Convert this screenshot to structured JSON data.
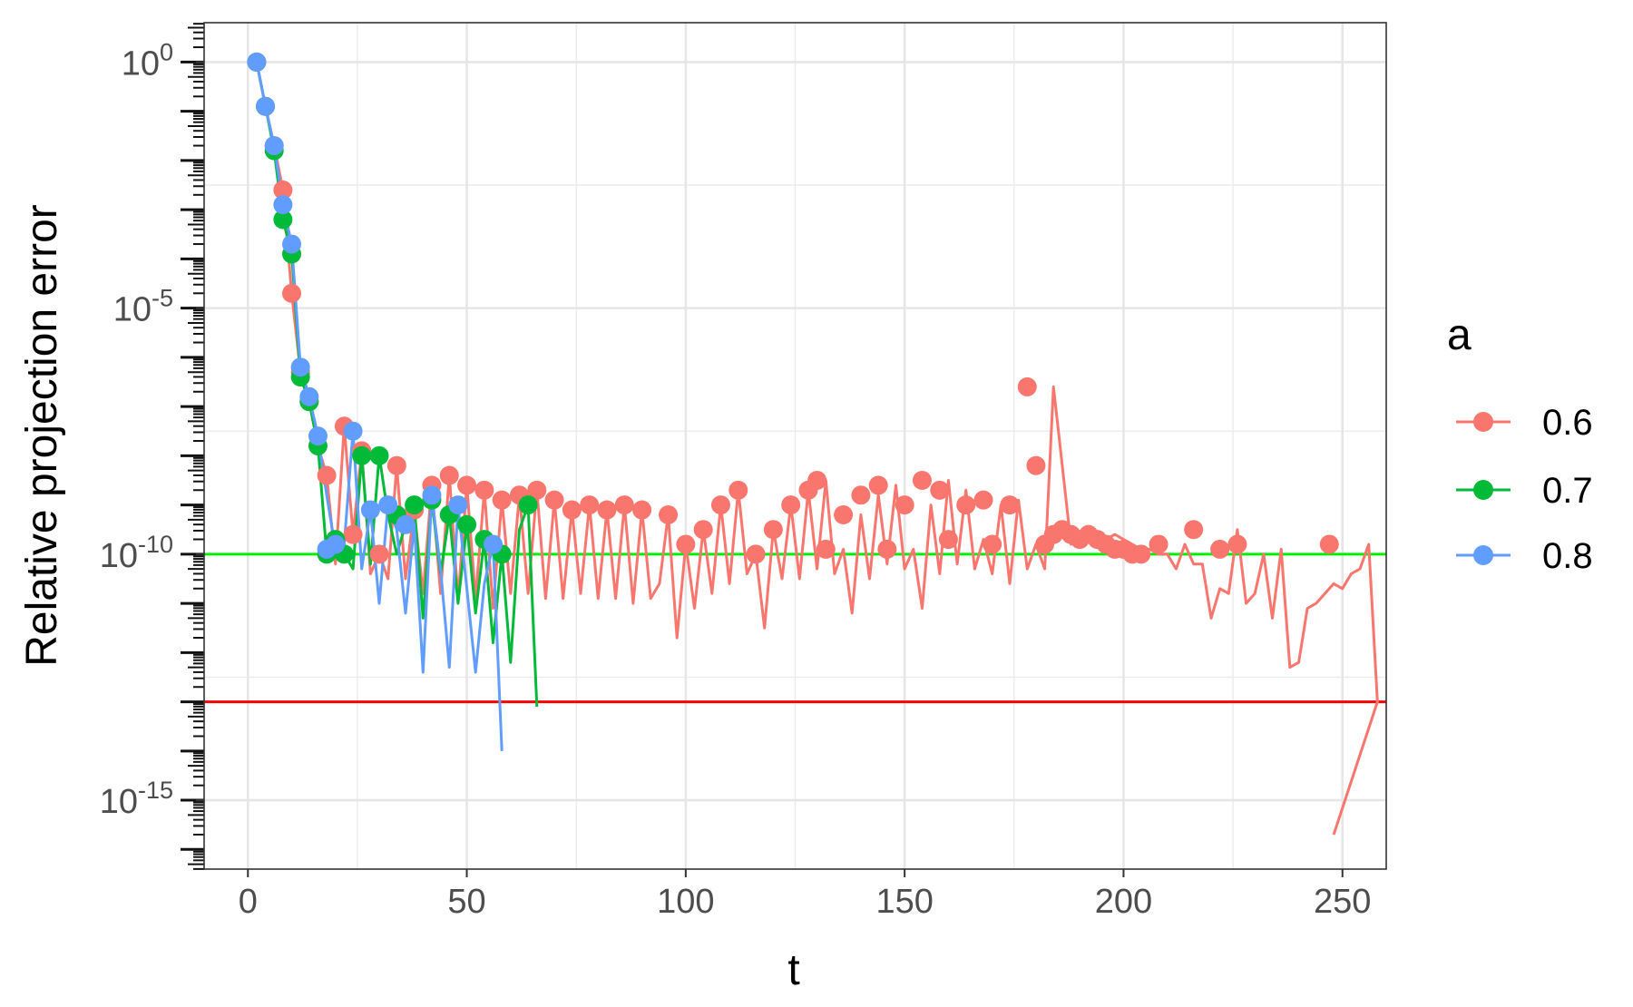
{
  "chart_data": {
    "type": "line",
    "title": "",
    "xlabel": "t",
    "ylabel": "Relative projection error",
    "xlim": [
      -10,
      260
    ],
    "ylim_log10": [
      -16.4,
      0.8
    ],
    "y_scale": "log10",
    "x_ticks": [
      0,
      50,
      100,
      150,
      200,
      250
    ],
    "x_tick_labels": [
      "0",
      "50",
      "100",
      "150",
      "200",
      "250"
    ],
    "y_ticks": [
      {
        "exp": 0,
        "base": "10",
        "sup": "0"
      },
      {
        "exp": -5,
        "base": "10",
        "sup": "-5"
      },
      {
        "exp": -10,
        "base": "10",
        "sup": "-10"
      },
      {
        "exp": -15,
        "base": "10",
        "sup": "-15"
      }
    ],
    "grid": true,
    "legend": {
      "title": "a",
      "position": "right"
    },
    "hlines": [
      {
        "y_log10": -10,
        "color": "#00ee00"
      },
      {
        "y_log10": -13,
        "color": "#ff0000"
      }
    ],
    "series": [
      {
        "name": "0.6",
        "color": "#F8766D",
        "points": [
          [
            2,
            0
          ],
          [
            4,
            -0.9
          ],
          [
            6,
            -1.7
          ],
          [
            8,
            -2.6
          ],
          [
            10,
            -4.7
          ],
          [
            12,
            -6.3
          ],
          [
            14,
            -6.9
          ],
          [
            16,
            -7.8
          ],
          [
            18,
            -8.4
          ],
          [
            20,
            -10.2
          ],
          [
            22,
            -7.4
          ],
          [
            24,
            -9.6
          ],
          [
            26,
            -7.9
          ],
          [
            28,
            -10.4
          ],
          [
            30,
            -10.0
          ],
          [
            32,
            -10.5
          ],
          [
            34,
            -8.2
          ],
          [
            36,
            -10.5
          ],
          [
            38,
            -9.1
          ],
          [
            40,
            -10.8
          ],
          [
            42,
            -8.6
          ],
          [
            44,
            -10.8
          ],
          [
            46,
            -8.4
          ],
          [
            48,
            -10.9
          ],
          [
            50,
            -8.6
          ],
          [
            52,
            -10.9
          ],
          [
            54,
            -8.7
          ],
          [
            56,
            -11.1
          ],
          [
            58,
            -8.9
          ],
          [
            60,
            -10.8
          ],
          [
            62,
            -8.8
          ],
          [
            64,
            -10.8
          ],
          [
            66,
            -8.7
          ],
          [
            68,
            -10.9
          ],
          [
            70,
            -8.9
          ],
          [
            72,
            -10.9
          ],
          [
            74,
            -9.1
          ],
          [
            76,
            -10.8
          ],
          [
            78,
            -9.0
          ],
          [
            80,
            -10.9
          ],
          [
            82,
            -9.1
          ],
          [
            84,
            -10.9
          ],
          [
            86,
            -9.0
          ],
          [
            88,
            -11.0
          ],
          [
            90,
            -9.1
          ],
          [
            92,
            -10.9
          ],
          [
            94,
            -10.6
          ],
          [
            96,
            -9.2
          ],
          [
            98,
            -11.7
          ],
          [
            100,
            -9.8
          ],
          [
            102,
            -11.1
          ],
          [
            104,
            -9.5
          ],
          [
            106,
            -10.8
          ],
          [
            108,
            -9.0
          ],
          [
            110,
            -10.6
          ],
          [
            112,
            -8.7
          ],
          [
            114,
            -10.4
          ],
          [
            116,
            -10.0
          ],
          [
            118,
            -11.5
          ],
          [
            120,
            -9.5
          ],
          [
            122,
            -10.5
          ],
          [
            124,
            -9.0
          ],
          [
            126,
            -10.5
          ],
          [
            128,
            -8.7
          ],
          [
            130,
            -10.3
          ],
          [
            132,
            -8.5
          ],
          [
            134,
            -10.4
          ],
          [
            136,
            -9.9
          ],
          [
            138,
            -11.2
          ],
          [
            140,
            -9.2
          ],
          [
            142,
            -10.5
          ],
          [
            144,
            -8.8
          ],
          [
            146,
            -10.2
          ],
          [
            148,
            -8.6
          ],
          [
            150,
            -10.3
          ],
          [
            152,
            -9.9
          ],
          [
            154,
            -11.1
          ],
          [
            156,
            -9.0
          ],
          [
            158,
            -10.4
          ],
          [
            160,
            -8.5
          ],
          [
            162,
            -10.2
          ],
          [
            164,
            -8.7
          ],
          [
            166,
            -10.3
          ],
          [
            168,
            -9.7
          ],
          [
            170,
            -10.4
          ],
          [
            172,
            -9.0
          ],
          [
            174,
            -10.6
          ],
          [
            176,
            -8.9
          ],
          [
            178,
            -10.3
          ],
          [
            180,
            -9.8
          ],
          [
            182,
            -10.3
          ],
          [
            184,
            -6.6
          ],
          [
            186,
            -8.2
          ],
          [
            188,
            -9.8
          ],
          [
            190,
            -9.6
          ],
          [
            192,
            -9.5
          ],
          [
            194,
            -9.6
          ],
          [
            196,
            -9.7
          ],
          [
            198,
            -9.6
          ],
          [
            200,
            -9.7
          ],
          [
            202,
            -9.8
          ],
          [
            204,
            -9.9
          ],
          [
            206,
            -9.9
          ],
          [
            208,
            -10.0
          ],
          [
            210,
            -10.0
          ],
          [
            212,
            -10.3
          ],
          [
            214,
            -9.8
          ],
          [
            216,
            -10.2
          ],
          [
            218,
            -10.2
          ],
          [
            220,
            -11.3
          ],
          [
            222,
            -10.7
          ],
          [
            224,
            -10.8
          ],
          [
            226,
            -9.5
          ],
          [
            228,
            -11.0
          ],
          [
            230,
            -10.8
          ],
          [
            232,
            -10.0
          ],
          [
            234,
            -11.3
          ],
          [
            236,
            -9.9
          ],
          [
            238,
            -12.3
          ],
          [
            240,
            -12.2
          ],
          [
            242,
            -11.1
          ],
          [
            244,
            -11.0
          ],
          [
            246,
            -10.8
          ],
          [
            248,
            -10.6
          ],
          [
            250,
            -10.7
          ],
          [
            252,
            -10.4
          ],
          [
            254,
            -10.3
          ],
          [
            256,
            -9.8
          ],
          [
            258,
            -13.0
          ],
          [
            248,
            -15.7
          ]
        ],
        "markers": [
          [
            2,
            0
          ],
          [
            4,
            -0.9
          ],
          [
            6,
            -1.7
          ],
          [
            8,
            -2.6
          ],
          [
            10,
            -4.7
          ],
          [
            12,
            -6.3
          ],
          [
            14,
            -6.9
          ],
          [
            18,
            -8.4
          ],
          [
            22,
            -7.4
          ],
          [
            24,
            -9.6
          ],
          [
            26,
            -7.9
          ],
          [
            30,
            -10.0
          ],
          [
            34,
            -8.2
          ],
          [
            38,
            -9.1
          ],
          [
            42,
            -8.6
          ],
          [
            46,
            -8.4
          ],
          [
            50,
            -8.6
          ],
          [
            54,
            -8.7
          ],
          [
            58,
            -8.9
          ],
          [
            62,
            -8.8
          ],
          [
            66,
            -8.7
          ],
          [
            70,
            -8.9
          ],
          [
            74,
            -9.1
          ],
          [
            78,
            -9.0
          ],
          [
            82,
            -9.1
          ],
          [
            86,
            -9.0
          ],
          [
            90,
            -9.1
          ],
          [
            96,
            -9.2
          ],
          [
            100,
            -9.8
          ],
          [
            104,
            -9.5
          ],
          [
            108,
            -9.0
          ],
          [
            112,
            -8.7
          ],
          [
            116,
            -10.0
          ],
          [
            120,
            -9.5
          ],
          [
            124,
            -9.0
          ],
          [
            128,
            -8.7
          ],
          [
            130,
            -8.5
          ],
          [
            132,
            -9.9
          ],
          [
            136,
            -9.2
          ],
          [
            140,
            -8.8
          ],
          [
            144,
            -8.6
          ],
          [
            146,
            -9.9
          ],
          [
            150,
            -9.0
          ],
          [
            154,
            -8.5
          ],
          [
            158,
            -8.7
          ],
          [
            160,
            -9.7
          ],
          [
            164,
            -9.0
          ],
          [
            168,
            -8.9
          ],
          [
            170,
            -9.8
          ],
          [
            174,
            -9.0
          ],
          [
            178,
            -6.6
          ],
          [
            180,
            -8.2
          ],
          [
            182,
            -9.8
          ],
          [
            184,
            -9.6
          ],
          [
            186,
            -9.5
          ],
          [
            188,
            -9.6
          ],
          [
            190,
            -9.7
          ],
          [
            192,
            -9.6
          ],
          [
            194,
            -9.7
          ],
          [
            196,
            -9.8
          ],
          [
            198,
            -9.9
          ],
          [
            200,
            -9.9
          ],
          [
            202,
            -10.0
          ],
          [
            204,
            -10.0
          ],
          [
            208,
            -9.8
          ],
          [
            216,
            -9.5
          ],
          [
            222,
            -9.9
          ],
          [
            226,
            -9.8
          ],
          [
            247,
            -9.8
          ]
        ]
      },
      {
        "name": "0.7",
        "color": "#00BA38",
        "points": [
          [
            2,
            0
          ],
          [
            4,
            -0.9
          ],
          [
            6,
            -1.8
          ],
          [
            8,
            -3.2
          ],
          [
            10,
            -3.9
          ],
          [
            12,
            -6.4
          ],
          [
            14,
            -6.9
          ],
          [
            16,
            -7.8
          ],
          [
            18,
            -10.0
          ],
          [
            20,
            -9.7
          ],
          [
            22,
            -10.0
          ],
          [
            24,
            -10.3
          ],
          [
            26,
            -8.0
          ],
          [
            28,
            -10.2
          ],
          [
            30,
            -8.0
          ],
          [
            32,
            -9.2
          ],
          [
            34,
            -10.0
          ],
          [
            36,
            -9.4
          ],
          [
            38,
            -9.0
          ],
          [
            40,
            -11.3
          ],
          [
            42,
            -8.9
          ],
          [
            44,
            -10.4
          ],
          [
            46,
            -9.2
          ],
          [
            48,
            -11.0
          ],
          [
            50,
            -9.4
          ],
          [
            52,
            -11.2
          ],
          [
            54,
            -9.7
          ],
          [
            56,
            -11.8
          ],
          [
            58,
            -10.0
          ],
          [
            60,
            -12.2
          ],
          [
            62,
            -9.5
          ],
          [
            64,
            -9.0
          ],
          [
            66,
            -13.1
          ]
        ],
        "markers": [
          [
            2,
            0
          ],
          [
            4,
            -0.9
          ],
          [
            6,
            -1.8
          ],
          [
            8,
            -3.2
          ],
          [
            10,
            -3.9
          ],
          [
            12,
            -6.4
          ],
          [
            14,
            -6.9
          ],
          [
            16,
            -7.8
          ],
          [
            18,
            -10.0
          ],
          [
            20,
            -9.7
          ],
          [
            22,
            -10.0
          ],
          [
            26,
            -8.0
          ],
          [
            30,
            -8.0
          ],
          [
            34,
            -9.2
          ],
          [
            38,
            -9.0
          ],
          [
            42,
            -8.9
          ],
          [
            46,
            -9.2
          ],
          [
            50,
            -9.4
          ],
          [
            54,
            -9.7
          ],
          [
            58,
            -10.0
          ],
          [
            64,
            -9.0
          ]
        ]
      },
      {
        "name": "0.8",
        "color": "#619CFF",
        "points": [
          [
            2,
            0
          ],
          [
            4,
            -0.9
          ],
          [
            6,
            -1.7
          ],
          [
            8,
            -2.9
          ],
          [
            10,
            -3.7
          ],
          [
            12,
            -6.2
          ],
          [
            14,
            -6.8
          ],
          [
            16,
            -7.6
          ],
          [
            18,
            -8.8
          ],
          [
            20,
            -9.9
          ],
          [
            22,
            -9.8
          ],
          [
            24,
            -7.5
          ],
          [
            26,
            -10.3
          ],
          [
            28,
            -9.1
          ],
          [
            30,
            -11.0
          ],
          [
            32,
            -9.0
          ],
          [
            34,
            -9.5
          ],
          [
            36,
            -11.2
          ],
          [
            38,
            -9.4
          ],
          [
            40,
            -12.4
          ],
          [
            42,
            -8.8
          ],
          [
            44,
            -10.3
          ],
          [
            46,
            -12.3
          ],
          [
            48,
            -9.0
          ],
          [
            50,
            -10.7
          ],
          [
            52,
            -12.4
          ],
          [
            54,
            -10.6
          ],
          [
            56,
            -9.8
          ],
          [
            58,
            -14.0
          ]
        ],
        "markers": [
          [
            2,
            0
          ],
          [
            4,
            -0.9
          ],
          [
            6,
            -1.7
          ],
          [
            8,
            -2.9
          ],
          [
            10,
            -3.7
          ],
          [
            12,
            -6.2
          ],
          [
            14,
            -6.8
          ],
          [
            16,
            -7.6
          ],
          [
            18,
            -9.9
          ],
          [
            20,
            -9.8
          ],
          [
            24,
            -7.5
          ],
          [
            28,
            -9.1
          ],
          [
            32,
            -9.0
          ],
          [
            36,
            -9.4
          ],
          [
            42,
            -8.8
          ],
          [
            48,
            -9.0
          ],
          [
            56,
            -9.8
          ]
        ]
      }
    ]
  }
}
